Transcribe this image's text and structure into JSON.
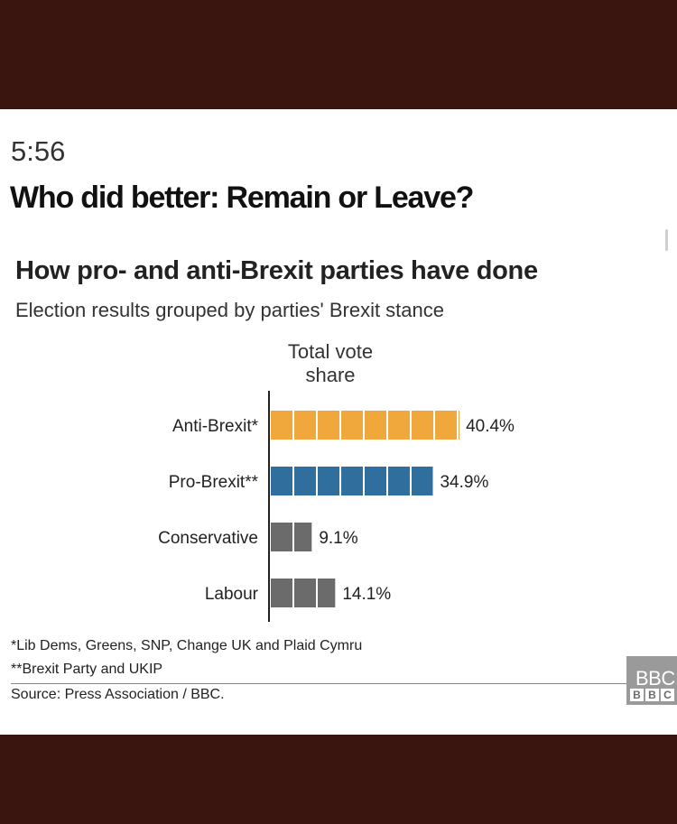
{
  "time": "5:56",
  "headline": "Who did better: Remain or Leave?",
  "chart_data": {
    "type": "bar",
    "orientation": "horizontal",
    "title": "How pro- and anti-Brexit parties have done",
    "subtitle": "Election results grouped by parties' Brexit stance",
    "axis_header": [
      "Total vote",
      "share"
    ],
    "categories": [
      "Anti-Brexit*",
      "Pro-Brexit**",
      "Conservative",
      "Labour"
    ],
    "values": [
      40.4,
      34.9,
      9.1,
      14.1
    ],
    "value_labels": [
      "40.4%",
      "34.9%",
      "9.1%",
      "14.1%"
    ],
    "unit": "%",
    "segment_size": 5,
    "colors": [
      "#f0a83c",
      "#2f6e9d",
      "#6b6b6b",
      "#6b6b6b"
    ],
    "footnotes": [
      "*Lib Dems, Greens, SNP, Change UK and Plaid Cymru",
      "**Brexit Party and UKIP"
    ],
    "source": "Source: Press Association / BBC."
  },
  "badge": {
    "text": "BBC",
    "blocks": [
      "B",
      "B",
      "C"
    ]
  }
}
